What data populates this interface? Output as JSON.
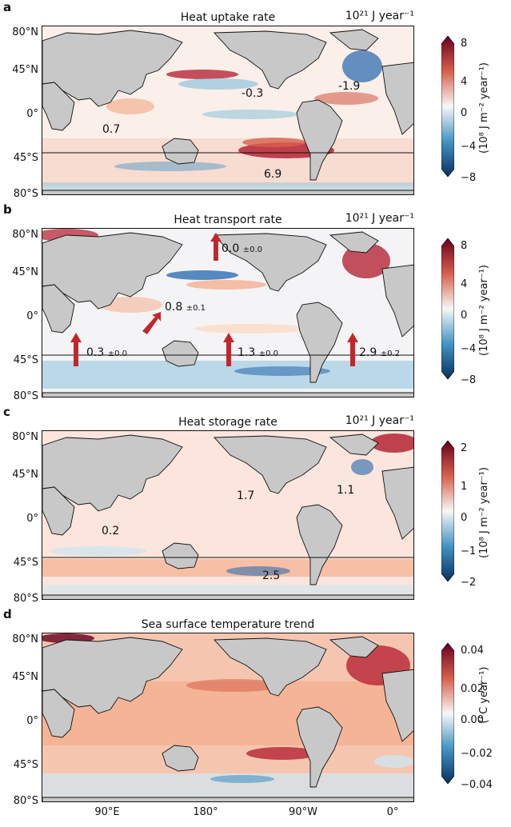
{
  "figure": {
    "panels": [
      {
        "letter": "a",
        "title": "Heat uptake rate",
        "units": "10²¹ J year⁻¹",
        "lat_labels": [
          "80°N",
          "45°N",
          "0°",
          "45°S",
          "80°S"
        ],
        "annotations": [
          {
            "value": "-0.3",
            "unc": ""
          },
          {
            "value": "-1.9",
            "unc": ""
          },
          {
            "value": "0.7",
            "unc": ""
          },
          {
            "value": "6.9",
            "unc": ""
          }
        ],
        "colorbar": {
          "ticks": [
            "8",
            "4",
            "0",
            "−4",
            "−8"
          ],
          "label": "(10⁸ J m⁻² year⁻¹)"
        }
      },
      {
        "letter": "b",
        "title": "Heat transport rate",
        "units": "10²¹ J year⁻¹",
        "lat_labels": [
          "80°N",
          "45°N",
          "0°",
          "45°S",
          "80°S"
        ],
        "annotations": [
          {
            "value": "0.0",
            "unc": "±0.0"
          },
          {
            "value": "0.8",
            "unc": "±0.1"
          },
          {
            "value": "0.3",
            "unc": "±0.0"
          },
          {
            "value": "1.3",
            "unc": "±0.0"
          },
          {
            "value": "2.9",
            "unc": "±0.2"
          }
        ],
        "colorbar": {
          "ticks": [
            "8",
            "4",
            "0",
            "−4",
            "−8"
          ],
          "label": "(10⁸ J m⁻² year⁻¹)"
        }
      },
      {
        "letter": "c",
        "title": "Heat storage rate",
        "units": "10²¹ J year⁻¹",
        "lat_labels": [
          "80°N",
          "45°N",
          "0°",
          "45°S",
          "80°S"
        ],
        "annotations": [
          {
            "value": "1.7",
            "unc": ""
          },
          {
            "value": "1.1",
            "unc": ""
          },
          {
            "value": "0.2",
            "unc": ""
          },
          {
            "value": "2.5",
            "unc": ""
          }
        ],
        "colorbar": {
          "ticks": [
            "2",
            "1",
            "0",
            "−1",
            "−2"
          ],
          "label": "(10⁸ J m⁻² year⁻¹)"
        }
      },
      {
        "letter": "d",
        "title": "Sea surface temperature trend",
        "units": "",
        "lat_labels": [
          "80°N",
          "45°N",
          "0°",
          "45°S",
          "80°S"
        ],
        "annotations": [],
        "colorbar": {
          "ticks": [
            "0.04",
            "0.02",
            "0.00",
            "−0.02",
            "−0.04"
          ],
          "label": "(°C year⁻¹)"
        }
      }
    ],
    "lon_labels": [
      "90°E",
      "180°",
      "90°W",
      "0°"
    ],
    "colors": {
      "land": "#c8c8c8",
      "warm": "#c0272d",
      "cool": "#2166ac",
      "neutral": "#f7f7f7"
    }
  }
}
